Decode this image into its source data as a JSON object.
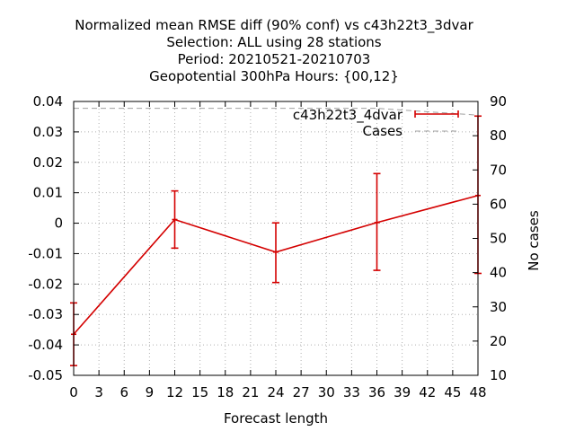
{
  "chart_data": {
    "type": "line",
    "title_lines": [
      "Normalized mean RMSE diff (90% conf) vs c43h22t3_3dvar",
      "Selection: ALL using    28 stations",
      "Period: 20210521-20210703",
      "Geopotential 300hPa   Hours: {00,12}"
    ],
    "xlabel": "Forecast length",
    "ylabel": "",
    "y2label": "No cases",
    "xlim": [
      0,
      48
    ],
    "ylim": [
      -0.05,
      0.04
    ],
    "y2lim": [
      10,
      90
    ],
    "xticks": [
      0,
      3,
      6,
      9,
      12,
      15,
      18,
      21,
      24,
      27,
      30,
      33,
      36,
      39,
      42,
      45,
      48
    ],
    "yticks": [
      -0.05,
      -0.04,
      -0.03,
      -0.02,
      -0.01,
      0,
      0.01,
      0.02,
      0.03,
      0.04
    ],
    "ytick_labels": [
      "-0.05",
      "-0.04",
      "-0.03",
      "-0.02",
      "-0.01",
      "0",
      "0.01",
      "0.02",
      "0.03",
      "0.04"
    ],
    "y2ticks": [
      10,
      20,
      30,
      40,
      50,
      60,
      70,
      80,
      90
    ],
    "grid": true,
    "legend_position": "top-right",
    "series": [
      {
        "name": "c43h22t3_4dvar",
        "color": "#d40000",
        "style": "errorbars-line",
        "x": [
          0,
          12,
          24,
          36,
          48
        ],
        "y": [
          -0.0365,
          0.0012,
          -0.0095,
          0.0002,
          0.0091
        ],
        "err_low": [
          -0.0468,
          -0.0082,
          -0.0195,
          -0.0155,
          -0.0165
        ],
        "err_high": [
          -0.0262,
          0.0106,
          0.0001,
          0.0163,
          0.0352
        ]
      },
      {
        "name": "Cases",
        "color": "#a0a0a0",
        "style": "dashed",
        "axis": "y2",
        "x": [
          0,
          12,
          24,
          36,
          48
        ],
        "y": [
          88,
          88,
          88,
          88,
          86
        ]
      }
    ]
  }
}
